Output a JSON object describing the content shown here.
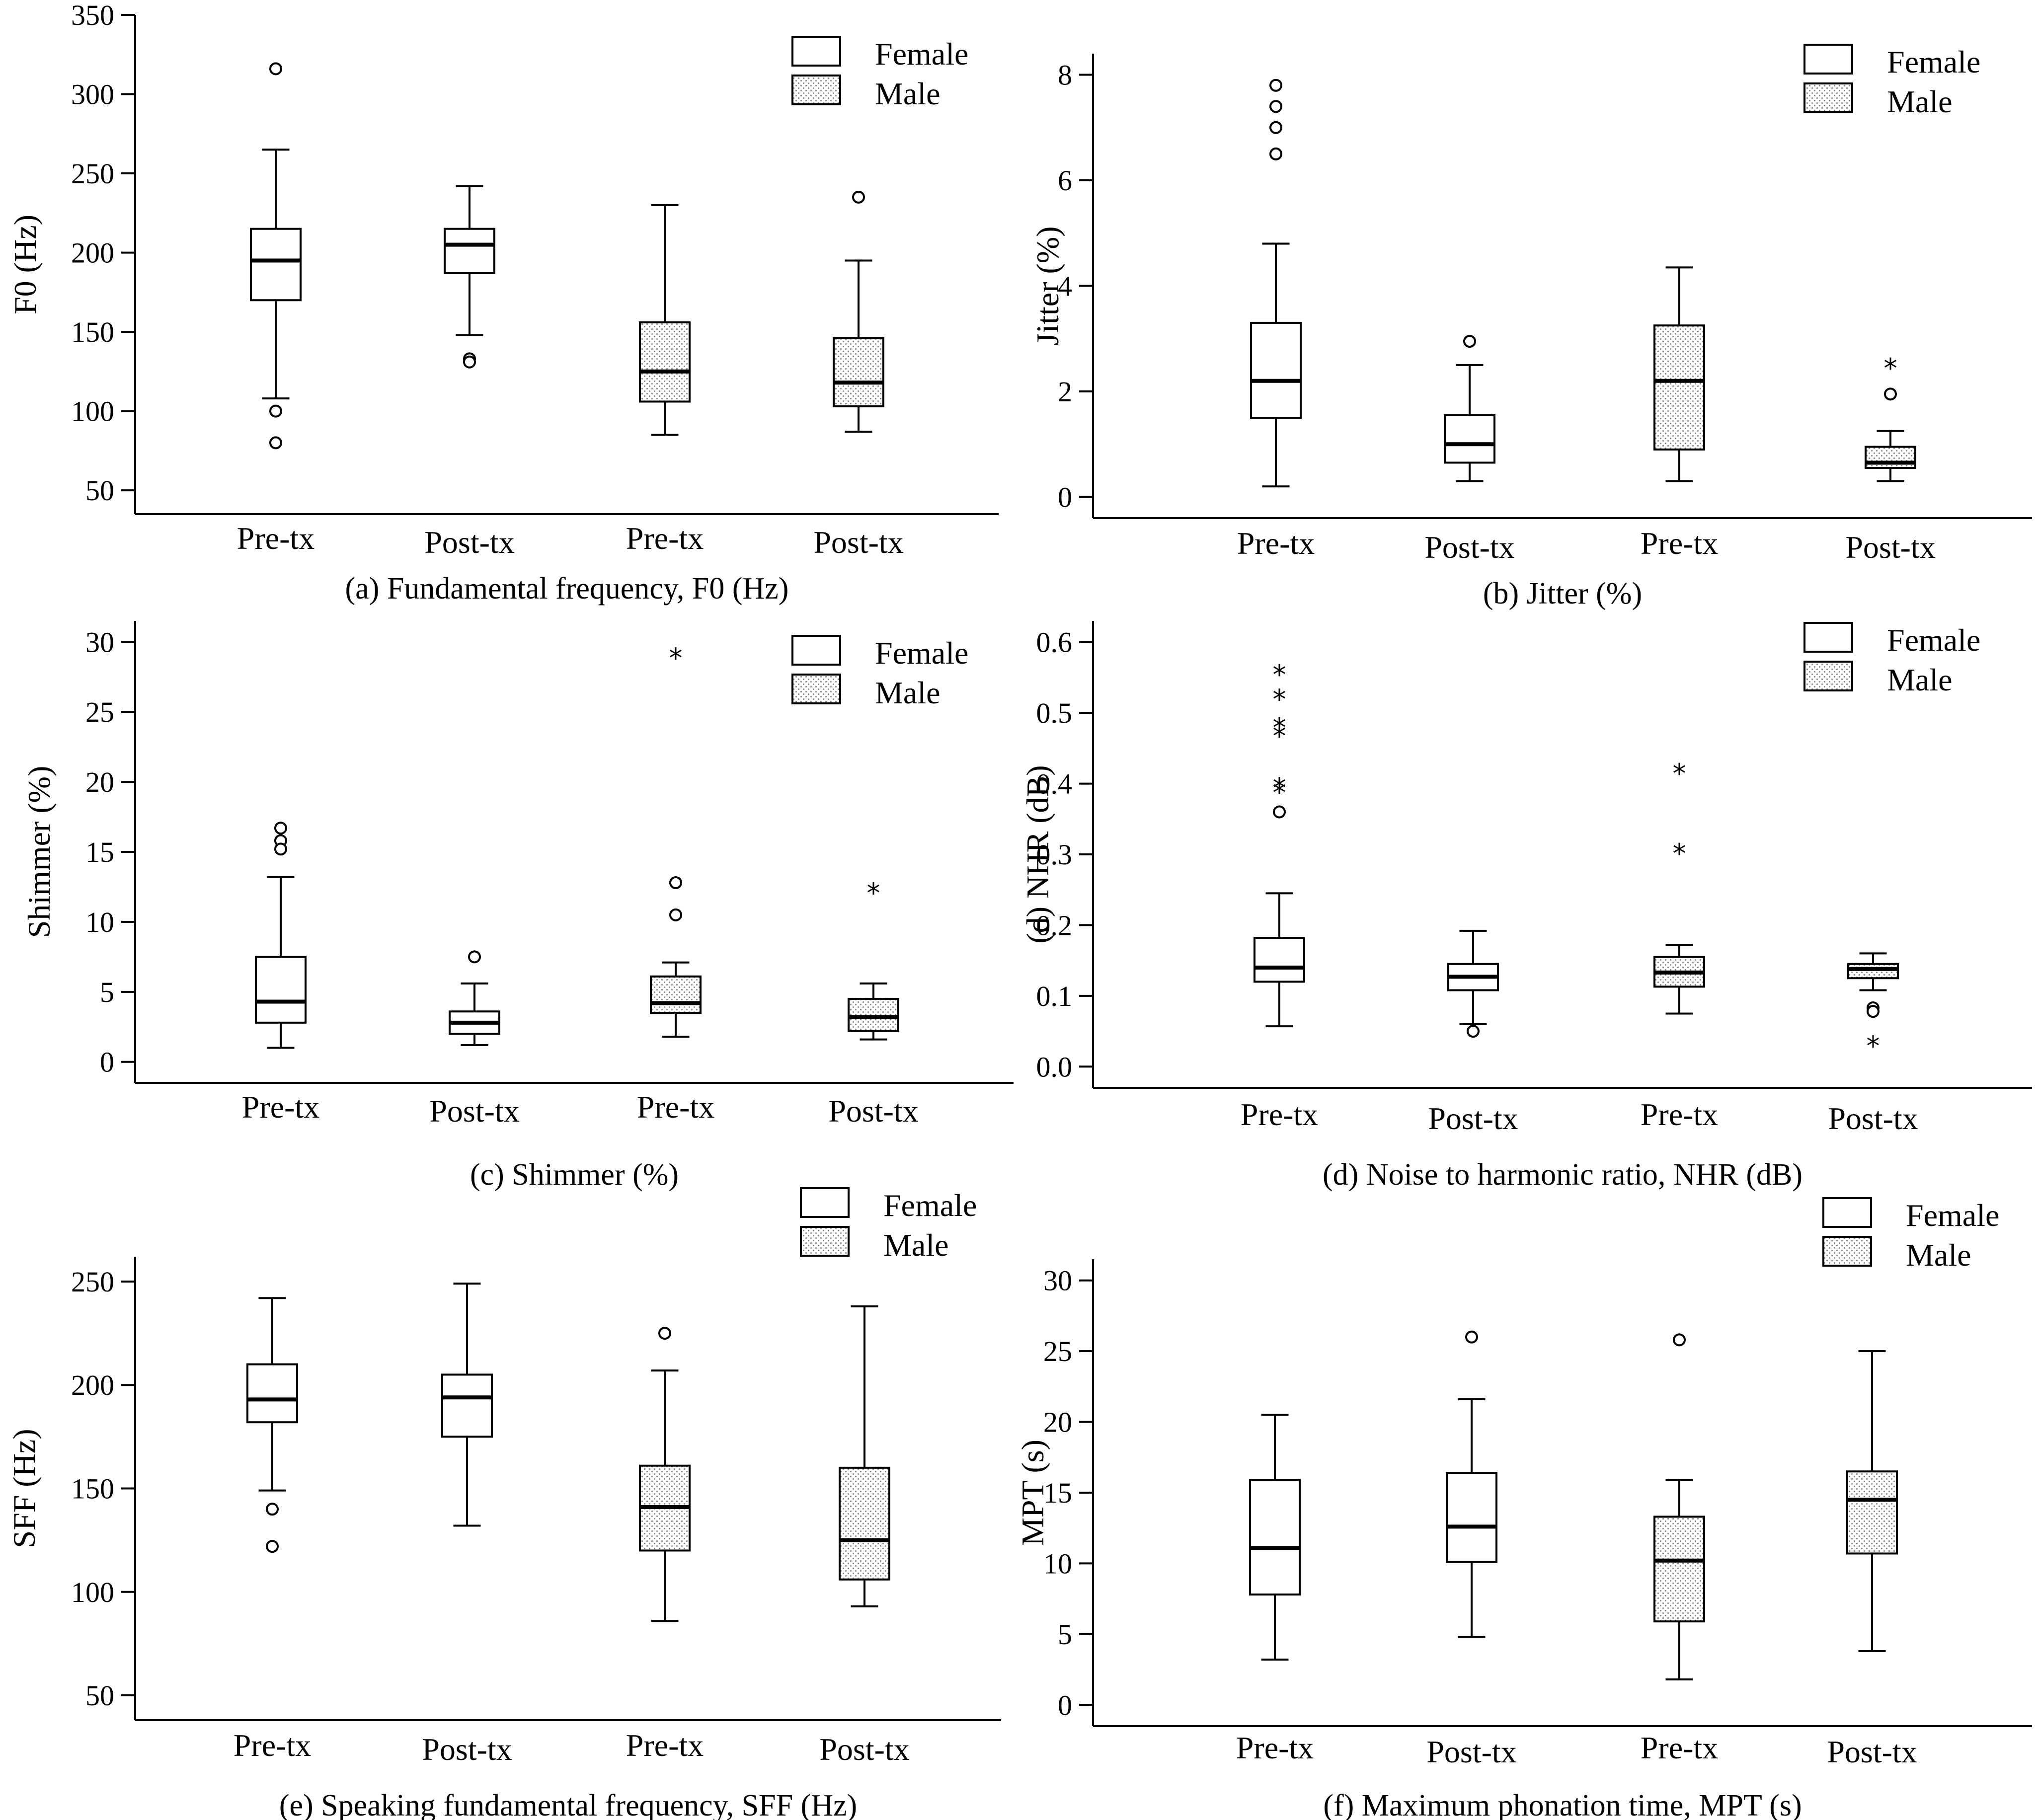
{
  "colors": {
    "ink": "#000000",
    "box_fill": "#ffffff",
    "hatch_dot": "#9a9a9a"
  },
  "legend": {
    "female": "Female",
    "male": "Male"
  },
  "chart_data": [
    {
      "type": "box",
      "title": "(a) Fundamental frequency, F0 (Hz)",
      "ylabel": "F0 (Hz)",
      "ylim": [
        35,
        350
      ],
      "yticks": [
        50,
        100,
        150,
        200,
        250,
        300,
        350
      ],
      "tick_labels": [
        "50",
        "100",
        "150",
        "200",
        "250",
        "300",
        "350"
      ],
      "categories": [
        "Pre-tx",
        "Post-tx",
        "Pre-tx",
        "Post-tx"
      ],
      "boxes": [
        {
          "group": "Female",
          "label": "Pre-tx",
          "whisker_low": 108,
          "q1": 170,
          "median": 195,
          "q3": 215,
          "whisker_high": 265,
          "outliers": [
            316,
            100,
            80
          ],
          "extremes": []
        },
        {
          "group": "Female",
          "label": "Post-tx",
          "whisker_low": 148,
          "q1": 187,
          "median": 205,
          "q3": 215,
          "whisker_high": 242,
          "outliers": [
            133,
            131
          ],
          "extremes": []
        },
        {
          "group": "Male",
          "label": "Pre-tx",
          "whisker_low": 85,
          "q1": 106,
          "median": 125,
          "q3": 156,
          "whisker_high": 230,
          "outliers": [],
          "extremes": []
        },
        {
          "group": "Male",
          "label": "Post-tx",
          "whisker_low": 87,
          "q1": 103,
          "median": 118,
          "q3": 146,
          "whisker_high": 195,
          "outliers": [
            235
          ],
          "extremes": []
        }
      ]
    },
    {
      "type": "box",
      "title": "(b) Jitter (%)",
      "ylabel": "Jitter (%)",
      "ylim": [
        -0.4,
        8.4
      ],
      "yticks": [
        0,
        2,
        4,
        6,
        8
      ],
      "tick_labels": [
        "0",
        "2",
        "4",
        "6",
        "8"
      ],
      "categories": [
        "Pre-tx",
        "Post-tx",
        "Pre-tx",
        "Post-tx"
      ],
      "boxes": [
        {
          "group": "Female",
          "label": "Pre-tx",
          "whisker_low": 0.2,
          "q1": 1.5,
          "median": 2.2,
          "q3": 3.3,
          "whisker_high": 4.8,
          "outliers": [
            7.8,
            7.4,
            7.0,
            6.5
          ],
          "extremes": []
        },
        {
          "group": "Female",
          "label": "Post-tx",
          "whisker_low": 0.3,
          "q1": 0.65,
          "median": 1.0,
          "q3": 1.55,
          "whisker_high": 2.5,
          "outliers": [
            2.95
          ],
          "extremes": []
        },
        {
          "group": "Male",
          "label": "Pre-tx",
          "whisker_low": 0.3,
          "q1": 0.9,
          "median": 2.2,
          "q3": 3.25,
          "whisker_high": 4.35,
          "outliers": [],
          "extremes": []
        },
        {
          "group": "Male",
          "label": "Post-tx",
          "whisker_low": 0.3,
          "q1": 0.55,
          "median": 0.65,
          "q3": 0.95,
          "whisker_high": 1.25,
          "outliers": [
            1.95
          ],
          "extremes": [
            2.45
          ]
        }
      ]
    },
    {
      "type": "box",
      "title": "(c) Shimmer (%)",
      "ylabel": "Shimmer (%)",
      "ylim": [
        -1.5,
        31.5
      ],
      "yticks": [
        0,
        5,
        10,
        15,
        20,
        25,
        30
      ],
      "tick_labels": [
        "0",
        "5",
        "10",
        "15",
        "20",
        "25",
        "30"
      ],
      "categories": [
        "Pre-tx",
        "Post-tx",
        "Pre-tx",
        "Post-tx"
      ],
      "boxes": [
        {
          "group": "Female",
          "label": "Pre-tx",
          "whisker_low": 1.0,
          "q1": 2.8,
          "median": 4.3,
          "q3": 7.5,
          "whisker_high": 13.2,
          "outliers": [
            16.7,
            15.8,
            15.2
          ],
          "extremes": []
        },
        {
          "group": "Female",
          "label": "Post-tx",
          "whisker_low": 1.2,
          "q1": 2.0,
          "median": 2.8,
          "q3": 3.6,
          "whisker_high": 5.6,
          "outliers": [
            7.5
          ],
          "extremes": []
        },
        {
          "group": "Male",
          "label": "Pre-tx",
          "whisker_low": 1.8,
          "q1": 3.5,
          "median": 4.2,
          "q3": 6.1,
          "whisker_high": 7.1,
          "outliers": [
            12.8,
            10.5
          ],
          "extremes": [
            28.9
          ]
        },
        {
          "group": "Male",
          "label": "Post-tx",
          "whisker_low": 1.6,
          "q1": 2.2,
          "median": 3.2,
          "q3": 4.5,
          "whisker_high": 5.6,
          "outliers": [],
          "extremes": [
            12.1
          ]
        }
      ]
    },
    {
      "type": "box",
      "title": "(d) Noise to harmonic ratio, NHR (dB)",
      "ylabel": "(d) NHR (dB)",
      "ylim": [
        -0.03,
        0.63
      ],
      "yticks": [
        0.0,
        0.1,
        0.2,
        0.3,
        0.4,
        0.5,
        0.6
      ],
      "tick_labels": [
        "0.0",
        "0.1",
        "0.2",
        "0.3",
        "0.4",
        "0.5",
        "0.6"
      ],
      "categories": [
        "Pre-tx",
        "Post-tx",
        "Pre-tx",
        "Post-tx"
      ],
      "boxes": [
        {
          "group": "Female",
          "label": "Pre-tx",
          "whisker_low": 0.057,
          "q1": 0.12,
          "median": 0.14,
          "q3": 0.182,
          "whisker_high": 0.245,
          "outliers": [
            0.36
          ],
          "extremes": [
            0.555,
            0.52,
            0.48,
            0.468,
            0.395,
            0.388
          ]
        },
        {
          "group": "Female",
          "label": "Post-tx",
          "whisker_low": 0.06,
          "q1": 0.108,
          "median": 0.127,
          "q3": 0.145,
          "whisker_high": 0.192,
          "outliers": [
            0.05
          ],
          "extremes": []
        },
        {
          "group": "Male",
          "label": "Pre-tx",
          "whisker_low": 0.075,
          "q1": 0.113,
          "median": 0.133,
          "q3": 0.155,
          "whisker_high": 0.172,
          "outliers": [],
          "extremes": [
            0.415,
            0.302
          ]
        },
        {
          "group": "Male",
          "label": "Post-tx",
          "whisker_low": 0.108,
          "q1": 0.125,
          "median": 0.138,
          "q3": 0.145,
          "whisker_high": 0.16,
          "outliers": [
            0.083,
            0.078
          ],
          "extremes": [
            0.03
          ]
        }
      ]
    },
    {
      "type": "box",
      "title": "(e) Speaking fundamental frequency, SFF (Hz)",
      "ylabel": "SFF (Hz)",
      "ylim": [
        38,
        262
      ],
      "yticks": [
        50,
        100,
        150,
        200,
        250
      ],
      "tick_labels": [
        "50",
        "100",
        "150",
        "200",
        "250"
      ],
      "categories": [
        "Pre-tx",
        "Post-tx",
        "Pre-tx",
        "Post-tx"
      ],
      "boxes": [
        {
          "group": "Female",
          "label": "Pre-tx",
          "whisker_low": 149,
          "q1": 182,
          "median": 193,
          "q3": 210,
          "whisker_high": 242,
          "outliers": [
            140,
            122
          ],
          "extremes": []
        },
        {
          "group": "Female",
          "label": "Post-tx",
          "whisker_low": 132,
          "q1": 175,
          "median": 194,
          "q3": 205,
          "whisker_high": 249,
          "outliers": [],
          "extremes": []
        },
        {
          "group": "Male",
          "label": "Pre-tx",
          "whisker_low": 86,
          "q1": 120,
          "median": 141,
          "q3": 161,
          "whisker_high": 207,
          "outliers": [
            225
          ],
          "extremes": []
        },
        {
          "group": "Male",
          "label": "Post-tx",
          "whisker_low": 93,
          "q1": 106,
          "median": 125,
          "q3": 160,
          "whisker_high": 238,
          "outliers": [],
          "extremes": []
        }
      ]
    },
    {
      "type": "box",
      "title": "(f) Maximum phonation time, MPT (s)",
      "ylabel": "MPT (s)",
      "ylim": [
        -1.5,
        31.5
      ],
      "yticks": [
        0,
        5,
        10,
        15,
        20,
        25,
        30
      ],
      "tick_labels": [
        "0",
        "5",
        "10",
        "15",
        "20",
        "25",
        "30"
      ],
      "categories": [
        "Pre-tx",
        "Post-tx",
        "Pre-tx",
        "Post-tx"
      ],
      "boxes": [
        {
          "group": "Female",
          "label": "Pre-tx",
          "whisker_low": 3.2,
          "q1": 7.8,
          "median": 11.1,
          "q3": 15.9,
          "whisker_high": 20.5,
          "outliers": [],
          "extremes": []
        },
        {
          "group": "Female",
          "label": "Post-tx",
          "whisker_low": 4.8,
          "q1": 10.1,
          "median": 12.6,
          "q3": 16.4,
          "whisker_high": 21.6,
          "outliers": [
            26.0
          ],
          "extremes": []
        },
        {
          "group": "Male",
          "label": "Pre-tx",
          "whisker_low": 1.8,
          "q1": 5.9,
          "median": 10.2,
          "q3": 13.3,
          "whisker_high": 15.9,
          "outliers": [
            25.8
          ],
          "extremes": []
        },
        {
          "group": "Male",
          "label": "Post-tx",
          "whisker_low": 3.8,
          "q1": 10.7,
          "median": 14.5,
          "q3": 16.5,
          "whisker_high": 25.0,
          "outliers": [],
          "extremes": []
        }
      ]
    }
  ]
}
